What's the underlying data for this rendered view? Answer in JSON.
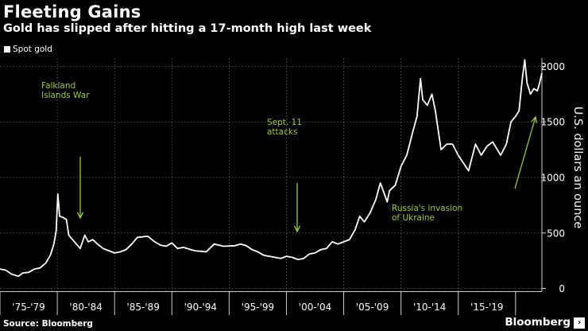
{
  "title": "Fleeting Gains",
  "subtitle": "Gold has slipped after hitting a 17-month high last week",
  "source": "Source: Bloomberg",
  "brand": "Bloomberg",
  "colors": {
    "background": "#000000",
    "line": "#ffffff",
    "annotation": "#9ccc3c",
    "grid": "#6a6a6a"
  },
  "chart_data": {
    "type": "line",
    "title": "Fleeting Gains",
    "subtitle": "Gold has slipped after hitting a 17-month high last week",
    "ylabel": "U.S. dollars an ounce",
    "ylim": [
      -25,
      2075
    ],
    "yticks": [
      0,
      500,
      1000,
      1500,
      2000
    ],
    "xlim": [
      1975,
      2022.3
    ],
    "xtick_labels": [
      "'75-'79",
      "'80-'84",
      "'85-'89",
      "'90-'94",
      "'95-'99",
      "'00-'04",
      "'05-'09",
      "'10-'14",
      "'15-'19"
    ],
    "legend": "top-left",
    "grid": "dashed vertical at period boundaries, dashed horizontal at y ticks",
    "series": [
      {
        "name": "Spot gold",
        "x": [
          1975.0,
          1975.5,
          1976.0,
          1976.6,
          1977.0,
          1977.5,
          1978.0,
          1978.5,
          1979.0,
          1979.4,
          1979.7,
          1979.9,
          1980.05,
          1980.2,
          1980.5,
          1980.8,
          1981.0,
          1981.5,
          1982.0,
          1982.4,
          1982.7,
          1983.1,
          1983.5,
          1984.0,
          1984.5,
          1985.0,
          1985.5,
          1986.0,
          1986.5,
          1987.0,
          1987.9,
          1988.5,
          1989.0,
          1989.5,
          1990.0,
          1990.5,
          1991.0,
          1992.0,
          1993.0,
          1993.7,
          1994.5,
          1995.5,
          1996.0,
          1996.5,
          1997.0,
          1997.5,
          1998.0,
          1998.5,
          1999.0,
          1999.5,
          2000.0,
          2000.5,
          2001.0,
          2001.5,
          2002.0,
          2002.5,
          2003.0,
          2003.5,
          2004.0,
          2004.5,
          2005.0,
          2005.5,
          2006.0,
          2006.4,
          2006.8,
          2007.3,
          2007.8,
          2008.2,
          2008.8,
          2009.0,
          2009.5,
          2010.0,
          2010.5,
          2011.0,
          2011.4,
          2011.7,
          2011.9,
          2012.3,
          2012.7,
          2013.0,
          2013.5,
          2014.0,
          2014.5,
          2015.0,
          2015.9,
          2016.5,
          2017.0,
          2017.5,
          2018.0,
          2018.7,
          2019.2,
          2019.6,
          2020.0,
          2020.3,
          2020.6,
          2020.8,
          2021.0,
          2021.3,
          2021.6,
          2021.9,
          2022.1,
          2022.3
        ],
        "values": [
          175,
          165,
          130,
          110,
          140,
          145,
          175,
          185,
          230,
          300,
          400,
          520,
          850,
          650,
          640,
          620,
          480,
          420,
          360,
          480,
          420,
          440,
          400,
          360,
          340,
          320,
          330,
          350,
          400,
          460,
          470,
          420,
          390,
          380,
          410,
          360,
          370,
          340,
          330,
          400,
          380,
          385,
          400,
          385,
          350,
          330,
          300,
          290,
          280,
          270,
          290,
          280,
          260,
          270,
          310,
          320,
          350,
          360,
          420,
          400,
          420,
          440,
          530,
          650,
          600,
          680,
          800,
          950,
          780,
          880,
          930,
          1100,
          1200,
          1400,
          1550,
          1890,
          1700,
          1650,
          1750,
          1600,
          1250,
          1300,
          1300,
          1200,
          1060,
          1300,
          1200,
          1280,
          1320,
          1200,
          1300,
          1500,
          1550,
          1600,
          1900,
          2060,
          1850,
          1750,
          1800,
          1780,
          1850,
          1940
        ]
      }
    ],
    "annotations": [
      {
        "text": "Falkland Islands War",
        "x": 1982.3,
        "y": 1950
      },
      {
        "text": "Sept. 11 attacks",
        "x": 2001.7,
        "y": 1450
      },
      {
        "text": "Russia's invasion of Ukraine",
        "x": 2022.2,
        "y": 780
      }
    ]
  }
}
